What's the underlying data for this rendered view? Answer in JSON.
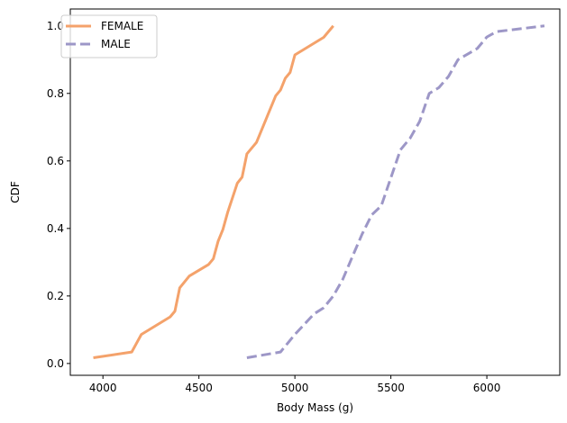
{
  "chart_data": {
    "type": "line",
    "xlabel": "Body Mass (g)",
    "ylabel": "CDF",
    "xlim": [
      3830,
      6380
    ],
    "ylim": [
      -0.035,
      1.05
    ],
    "xticks": [
      4000,
      4500,
      5000,
      5500,
      6000
    ],
    "yticks": [
      0.0,
      0.2,
      0.4,
      0.6,
      0.8,
      1.0
    ],
    "xtick_labels": [
      "4000",
      "4500",
      "5000",
      "5500",
      "6000"
    ],
    "ytick_labels": [
      "0.0",
      "0.2",
      "0.4",
      "0.6",
      "0.8",
      "1.0"
    ],
    "grid": false,
    "legend_position": "top-left",
    "series": [
      {
        "name": "FEMALE",
        "color": "#f4a26b",
        "style": "solid",
        "points": [
          [
            3950,
            0.017
          ],
          [
            4150,
            0.034
          ],
          [
            4200,
            0.086
          ],
          [
            4350,
            0.138
          ],
          [
            4375,
            0.155
          ],
          [
            4400,
            0.224
          ],
          [
            4450,
            0.259
          ],
          [
            4550,
            0.293
          ],
          [
            4575,
            0.31
          ],
          [
            4600,
            0.362
          ],
          [
            4625,
            0.397
          ],
          [
            4650,
            0.448
          ],
          [
            4700,
            0.534
          ],
          [
            4725,
            0.552
          ],
          [
            4750,
            0.621
          ],
          [
            4800,
            0.655
          ],
          [
            4850,
            0.724
          ],
          [
            4900,
            0.793
          ],
          [
            4925,
            0.81
          ],
          [
            4950,
            0.845
          ],
          [
            4975,
            0.862
          ],
          [
            5000,
            0.914
          ],
          [
            5150,
            0.966
          ],
          [
            5200,
            1.0
          ]
        ]
      },
      {
        "name": "MALE",
        "color": "#9d97c7",
        "style": "dashed",
        "points": [
          [
            4750,
            0.017
          ],
          [
            4925,
            0.034
          ],
          [
            5000,
            0.086
          ],
          [
            5100,
            0.147
          ],
          [
            5150,
            0.165
          ],
          [
            5200,
            0.2
          ],
          [
            5250,
            0.25
          ],
          [
            5300,
            0.317
          ],
          [
            5350,
            0.383
          ],
          [
            5400,
            0.44
          ],
          [
            5450,
            0.467
          ],
          [
            5500,
            0.55
          ],
          [
            5550,
            0.633
          ],
          [
            5600,
            0.667
          ],
          [
            5650,
            0.717
          ],
          [
            5700,
            0.8
          ],
          [
            5750,
            0.817
          ],
          [
            5800,
            0.85
          ],
          [
            5850,
            0.9
          ],
          [
            5950,
            0.933
          ],
          [
            6000,
            0.967
          ],
          [
            6050,
            0.983
          ],
          [
            6300,
            1.0
          ]
        ]
      }
    ]
  }
}
